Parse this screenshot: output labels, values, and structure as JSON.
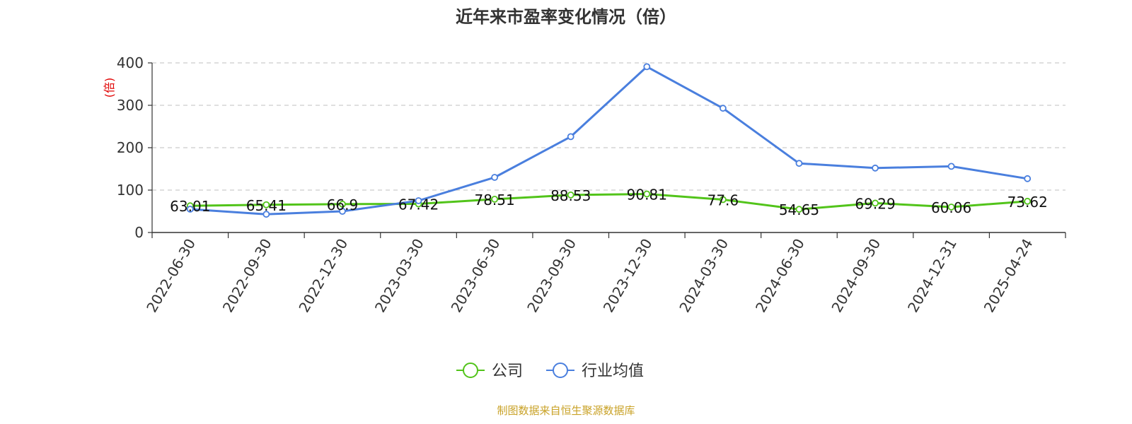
{
  "chart_data": {
    "type": "line",
    "title": "近年来市盈率变化情况（倍）",
    "ylabel": "(倍)",
    "ylim": [
      0,
      400
    ],
    "yticks": [
      0,
      100,
      200,
      300,
      400
    ],
    "grid": true,
    "legend_position": "bottom",
    "categories": [
      "2022-06-30",
      "2022-09-30",
      "2022-12-30",
      "2023-03-30",
      "2023-06-30",
      "2023-09-30",
      "2023-12-30",
      "2024-03-30",
      "2024-06-30",
      "2024-09-30",
      "2024-12-31",
      "2025-04-24"
    ],
    "series": [
      {
        "name": "公司",
        "color": "#52c41a",
        "values": [
          63.01,
          65.41,
          66.9,
          67.42,
          78.51,
          88.53,
          90.81,
          77.6,
          54.65,
          69.29,
          60.06,
          73.62
        ],
        "labels": [
          "63.01",
          "65.41",
          "66.9",
          "67.42",
          "78.51",
          "88.53",
          "90.81",
          "77.6",
          "54.65",
          "69.29",
          "60.06",
          "73.62"
        ]
      },
      {
        "name": "行业均值",
        "color": "#4a7fde",
        "values": [
          55,
          43,
          50,
          75,
          130,
          226,
          391,
          293,
          163,
          152,
          156,
          127
        ]
      }
    ],
    "source": "制图数据来自恒生聚源数据库"
  }
}
